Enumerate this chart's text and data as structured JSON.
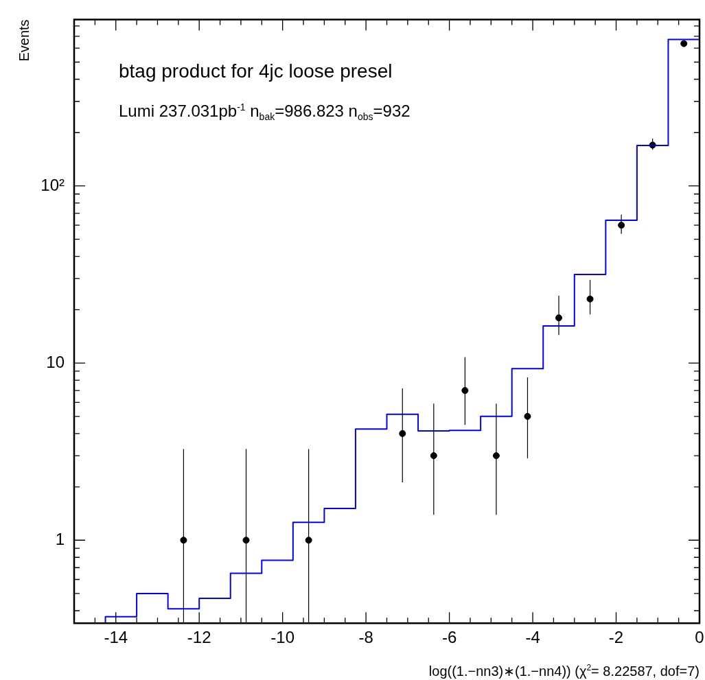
{
  "chart_data": {
    "type": "histogram",
    "title": "btag product for 4jc loose presel",
    "subtitle": "Lumi 237.031pb$^{-1}$ n$_{bak}$=986.823 n$_{obs}$=932",
    "xlabel": "log((1.−nn3)∗(1.−nn4)) (χ$^{2}$= 8.22587, dof=7)",
    "ylabel": "Events",
    "bins": [
      -15,
      -14.25,
      -13.5,
      -12.75,
      -12,
      -11.25,
      -10.5,
      -9.75,
      -9,
      -8.25,
      -7.5,
      -6.75,
      -6,
      -5.25,
      -4.5,
      -3.75,
      -3,
      -2.25,
      -1.5,
      -0.75,
      0
    ],
    "series": [
      {
        "type": "histogram",
        "color": "#0000ff",
        "values": [
          0.34,
          0.37,
          0.5,
          0.41,
          0.47,
          0.65,
          0.77,
          1.26,
          1.51,
          4.24,
          5.14,
          4.14,
          4.17,
          5.0,
          9.3,
          16.2,
          31.6,
          64,
          169,
          671
        ]
      },
      {
        "type": "scatter",
        "color": "#000000",
        "x": [
          -12.375,
          -10.875,
          -9.375,
          -7.125,
          -6.375,
          -5.625,
          -4.875,
          -4.125,
          -3.375,
          -2.625,
          -1.875,
          -1.125,
          -0.375
        ],
        "values": [
          1,
          1,
          1,
          4,
          3,
          7,
          3,
          5,
          18,
          23,
          60,
          170,
          636
        ],
        "errors": [
          [
            0.34,
            3.27
          ],
          [
            0.34,
            3.27
          ],
          [
            0.34,
            3.27
          ],
          [
            2.12,
            7.2
          ],
          [
            1.39,
            5.9
          ],
          [
            4.47,
            10.8
          ],
          [
            1.39,
            5.9
          ],
          [
            2.9,
            8.3
          ],
          [
            14.4,
            24
          ],
          [
            18.8,
            29.5
          ],
          [
            53.6,
            68.9
          ],
          [
            160,
            185
          ],
          [
            611,
            661
          ]
        ]
      }
    ],
    "marker": "circle",
    "log": "y",
    "xlim": [
      -15,
      0
    ],
    "ylim": [
      0.34,
      870
    ],
    "xticks": [
      -14,
      -12,
      -10,
      -8,
      -6,
      -4,
      -2,
      0,
      {
        "value": -14.5,
        "label": null
      },
      {
        "value": -13.5,
        "label": null
      },
      {
        "value": -13,
        "label": null
      },
      {
        "value": -12.5,
        "label": null
      },
      {
        "value": -11.5,
        "label": null
      },
      {
        "value": -11,
        "label": null
      },
      {
        "value": -10.5,
        "label": null
      },
      {
        "value": -9.5,
        "label": null
      },
      {
        "value": -9,
        "label": null
      },
      {
        "value": -8.5,
        "label": null
      },
      {
        "value": -7.5,
        "label": null
      },
      {
        "value": -7,
        "label": null
      },
      {
        "value": -6.5,
        "label": null
      },
      {
        "value": -5.5,
        "label": null
      },
      {
        "value": -5,
        "label": null
      },
      {
        "value": -4.5,
        "label": null
      },
      {
        "value": -3.5,
        "label": null
      },
      {
        "value": -3,
        "label": null
      },
      {
        "value": -2.5,
        "label": null
      },
      {
        "value": -1.5,
        "label": null
      },
      {
        "value": -1,
        "label": null
      },
      {
        "value": -0.5,
        "label": null
      }
    ],
    "yticks": [
      1,
      10,
      {
        "value": 100,
        "label": "10²"
      },
      {
        "value": 0.4,
        "label": null
      },
      {
        "value": 0.5,
        "label": null
      },
      {
        "value": 0.6,
        "label": null
      },
      {
        "value": 0.7,
        "label": null
      },
      {
        "value": 0.8,
        "label": null
      },
      {
        "value": 0.9,
        "label": null
      },
      {
        "value": 2,
        "label": null
      },
      {
        "value": 3,
        "label": null
      },
      {
        "value": 4,
        "label": null
      },
      {
        "value": 5,
        "label": null
      },
      {
        "value": 6,
        "label": null
      },
      {
        "value": 7,
        "label": null
      },
      {
        "value": 8,
        "label": null
      },
      {
        "value": 9,
        "label": null
      },
      {
        "value": 20,
        "label": null
      },
      {
        "value": 30,
        "label": null
      },
      {
        "value": 40,
        "label": null
      },
      {
        "value": 50,
        "label": null
      },
      {
        "value": 60,
        "label": null
      },
      {
        "value": 70,
        "label": null
      },
      {
        "value": 80,
        "label": null
      },
      {
        "value": 90,
        "label": null
      },
      {
        "value": 200,
        "label": null
      },
      {
        "value": 300,
        "label": null
      },
      {
        "value": 400,
        "label": null
      },
      {
        "value": 500,
        "label": null
      },
      {
        "value": 600,
        "label": null
      },
      {
        "value": 700,
        "label": null
      },
      {
        "value": 800,
        "label": null
      }
    ]
  }
}
